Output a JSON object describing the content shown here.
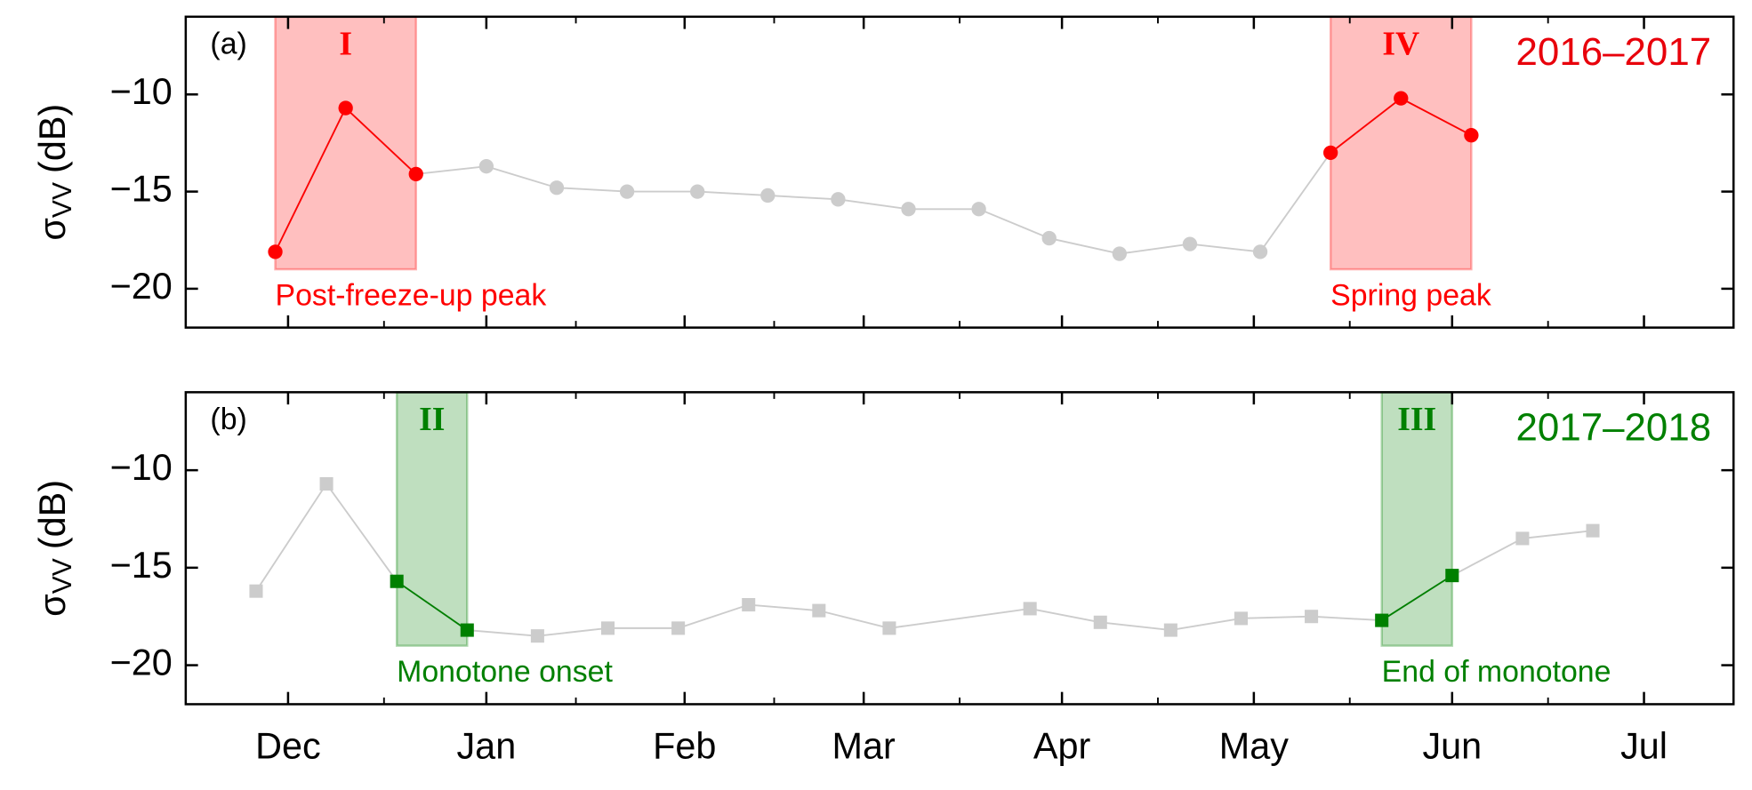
{
  "chart_data": [
    {
      "type": "line",
      "panel_label": "(a)",
      "title": "2016–2017",
      "title_color": "#e8000b",
      "ylabel": {
        "symbol": "σ",
        "subscript": "VV",
        "unit": "(dB)"
      },
      "marker": "circle",
      "x": [
        -2,
        9,
        20,
        31,
        42,
        53,
        64,
        75,
        86,
        97,
        108,
        119,
        130,
        141,
        152,
        163,
        174,
        185
      ],
      "series": [
        {
          "color": "#cccccc",
          "values": [
            -18.1,
            -10.7,
            -14.1,
            -13.7,
            -14.8,
            -15.0,
            -15.0,
            -15.2,
            -15.4,
            -15.9,
            -15.9,
            -17.4,
            -18.2,
            -17.7,
            -18.1,
            -13.0,
            -10.2,
            -12.1
          ],
          "point_colors": [
            "#ff0000",
            "#ff0000",
            "#ff0000",
            "#cccccc",
            "#cccccc",
            "#cccccc",
            "#cccccc",
            "#cccccc",
            "#cccccc",
            "#cccccc",
            "#cccccc",
            "#cccccc",
            "#cccccc",
            "#cccccc",
            "#cccccc",
            "#ff0000",
            "#ff0000",
            "#ff0000"
          ]
        }
      ],
      "regions": [
        {
          "x": [
            -2,
            20
          ],
          "bottom": -19,
          "label": "I",
          "annotation": "Post-freeze-up peak",
          "color": "#ff0000"
        },
        {
          "x": [
            163,
            185
          ],
          "bottom": -19,
          "label": "IV",
          "annotation": "Spring peak",
          "color": "#ff0000"
        }
      ],
      "xlim": [
        -16,
        226
      ],
      "xticks": [
        0,
        31,
        62,
        90,
        121,
        151,
        182,
        212
      ],
      "xticks_minor": [
        15,
        45,
        76,
        105,
        136,
        166,
        197
      ],
      "ylim": [
        -22,
        -6
      ],
      "yticks": [
        {
          "value": -20,
          "label": "−20"
        },
        {
          "value": -15,
          "label": "−15"
        },
        {
          "value": -10,
          "label": "−10"
        }
      ]
    },
    {
      "type": "line",
      "panel_label": "(b)",
      "title": "2017–2018",
      "title_color": "#008000",
      "ylabel": {
        "symbol": "σ",
        "subscript": "VV",
        "unit": "(dB)"
      },
      "marker": "square",
      "x": [
        -5,
        6,
        17,
        28,
        39,
        50,
        61,
        72,
        83,
        94,
        116,
        127,
        138,
        149,
        160,
        171,
        182,
        193,
        204
      ],
      "series": [
        {
          "color": "#cccccc",
          "values": [
            -16.2,
            -10.7,
            -15.7,
            -18.2,
            -18.5,
            -18.1,
            -18.1,
            -16.9,
            -17.2,
            -18.1,
            -17.1,
            -17.8,
            -18.2,
            -17.6,
            -17.5,
            -17.7,
            -15.4,
            -13.5,
            -13.1
          ],
          "point_colors": [
            "#cccccc",
            "#cccccc",
            "#008000",
            "#008000",
            "#cccccc",
            "#cccccc",
            "#cccccc",
            "#cccccc",
            "#cccccc",
            "#cccccc",
            "#cccccc",
            "#cccccc",
            "#cccccc",
            "#cccccc",
            "#cccccc",
            "#008000",
            "#008000",
            "#cccccc",
            "#cccccc"
          ]
        }
      ],
      "regions": [
        {
          "x": [
            17,
            28
          ],
          "bottom": -19,
          "label": "II",
          "annotation": "Monotone onset",
          "color": "#008000"
        },
        {
          "x": [
            171,
            182
          ],
          "bottom": -19,
          "label": "III",
          "annotation": "End of monotone",
          "color": "#008000"
        }
      ],
      "xlim": [
        -16,
        226
      ],
      "xticks": [
        {
          "value": 0,
          "label": "Dec"
        },
        {
          "value": 31,
          "label": "Jan"
        },
        {
          "value": 62,
          "label": "Feb"
        },
        {
          "value": 90,
          "label": "Mar"
        },
        {
          "value": 121,
          "label": "Apr"
        },
        {
          "value": 151,
          "label": "May"
        },
        {
          "value": 182,
          "label": "Jun"
        },
        {
          "value": 212,
          "label": "Jul"
        }
      ],
      "xticks_minor": [
        15,
        45,
        76,
        105,
        136,
        166,
        197
      ],
      "ylim": [
        -22,
        -6
      ],
      "yticks": [
        {
          "value": -20,
          "label": "−20"
        },
        {
          "value": -15,
          "label": "−15"
        },
        {
          "value": -10,
          "label": "−10"
        }
      ]
    }
  ]
}
